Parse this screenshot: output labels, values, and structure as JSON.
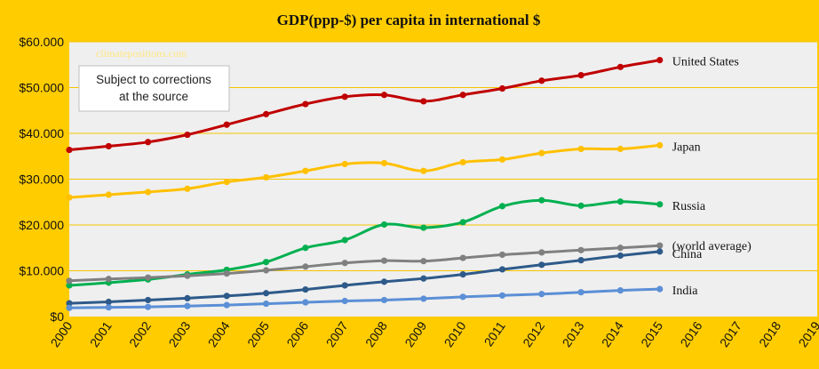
{
  "colors": {
    "page_background": "#FFCC00",
    "plot_background": "#EFEFEF",
    "gridline": "#F5C400"
  },
  "chart_data": {
    "type": "line",
    "title": "GDP(ppp-$) per capita in international $",
    "x": [
      2000,
      2001,
      2002,
      2003,
      2004,
      2005,
      2006,
      2007,
      2008,
      2009,
      2010,
      2011,
      2012,
      2013,
      2014,
      2015
    ],
    "x_ticks": [
      "2000",
      "2001",
      "2002",
      "2003",
      "2004",
      "2005",
      "2006",
      "2007",
      "2008",
      "2009",
      "2010",
      "2011",
      "2012",
      "2013",
      "2014",
      "2015",
      "2016",
      "2017",
      "2018",
      "2019"
    ],
    "xlim": [
      2000,
      2019
    ],
    "ylim": [
      0,
      60000
    ],
    "y_ticks": [
      0,
      10000,
      20000,
      30000,
      40000,
      50000,
      60000
    ],
    "y_tick_labels": [
      "$0",
      "$10.000",
      "$20.000",
      "$30.000",
      "$40.000",
      "$50.000",
      "$60.000"
    ],
    "xlabel": "",
    "ylabel": "",
    "grid": "horizontal",
    "legend": "none",
    "series": [
      {
        "name": "United States",
        "color": "#C00000",
        "values": [
          36400,
          37200,
          38100,
          39700,
          41900,
          44200,
          46400,
          48000,
          48400,
          47000,
          48400,
          49800,
          51500,
          52700,
          54500,
          56000
        ]
      },
      {
        "name": "Japan",
        "color": "#FFC000",
        "values": [
          26000,
          26600,
          27200,
          27900,
          29400,
          30400,
          31800,
          33300,
          33500,
          31800,
          33700,
          34300,
          35700,
          36600,
          36600,
          37400
        ]
      },
      {
        "name": "Russia",
        "color": "#00B050",
        "values": [
          6800,
          7400,
          8100,
          9200,
          10200,
          11900,
          15000,
          16700,
          20100,
          19400,
          20600,
          24100,
          25400,
          24200,
          25100,
          24500
        ]
      },
      {
        "name": "(world average)",
        "color": "#808080",
        "values": [
          7800,
          8200,
          8500,
          8900,
          9400,
          10100,
          10900,
          11700,
          12200,
          12100,
          12800,
          13500,
          14000,
          14500,
          15000,
          15500
        ]
      },
      {
        "name": "China",
        "color": "#2E5A8A",
        "values": [
          2900,
          3200,
          3600,
          4000,
          4500,
          5100,
          5900,
          6800,
          7600,
          8300,
          9200,
          10300,
          11300,
          12300,
          13300,
          14200
        ]
      },
      {
        "name": "India",
        "color": "#5B8FD6",
        "values": [
          1900,
          2000,
          2100,
          2300,
          2500,
          2800,
          3100,
          3400,
          3600,
          3900,
          4300,
          4600,
          4900,
          5300,
          5700,
          6000
        ]
      }
    ],
    "annotations": {
      "watermark": "climatepositions.com",
      "watermark_color": "#FFE680",
      "note": [
        "Subject to corrections",
        "at the source"
      ]
    }
  }
}
